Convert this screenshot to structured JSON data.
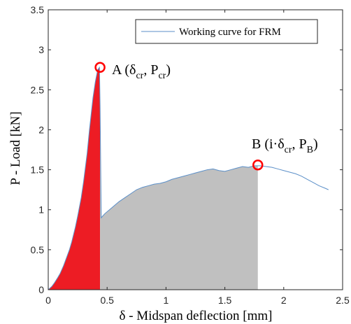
{
  "chart_data": {
    "type": "line",
    "xlabel": "δ - Midspan deflection [mm]",
    "ylabel": "P - Load [kN]",
    "xlim": [
      0,
      2.5
    ],
    "ylim": [
      0,
      3.5
    ],
    "xticks": [
      "0",
      "0.5",
      "1",
      "1.5",
      "2",
      "2.5"
    ],
    "yticks": [
      "0",
      "0.5",
      "1",
      "1.5",
      "2",
      "2.5",
      "3",
      "3.5"
    ],
    "grid": false,
    "legend": {
      "position": "top-right",
      "entries": [
        "Working curve for FRM"
      ]
    },
    "series": [
      {
        "name": "Working curve for FRM",
        "color": "#5b8fc8",
        "x": [
          0,
          0.03,
          0.05,
          0.08,
          0.1,
          0.13,
          0.15,
          0.18,
          0.2,
          0.23,
          0.25,
          0.28,
          0.3,
          0.33,
          0.35,
          0.38,
          0.4,
          0.42,
          0.435,
          0.44,
          0.45,
          0.48,
          0.52,
          0.56,
          0.6,
          0.65,
          0.7,
          0.75,
          0.8,
          0.85,
          0.9,
          0.95,
          1.0,
          1.05,
          1.1,
          1.15,
          1.2,
          1.25,
          1.3,
          1.35,
          1.4,
          1.45,
          1.5,
          1.55,
          1.6,
          1.65,
          1.7,
          1.75,
          1.78,
          1.8,
          1.85,
          1.9,
          1.95,
          2.0,
          2.05,
          2.1,
          2.15,
          2.2,
          2.25,
          2.3,
          2.35,
          2.38
        ],
        "y": [
          0,
          0.04,
          0.08,
          0.15,
          0.2,
          0.3,
          0.38,
          0.5,
          0.6,
          0.78,
          0.92,
          1.15,
          1.35,
          1.7,
          2.0,
          2.4,
          2.6,
          2.75,
          2.78,
          2.3,
          0.9,
          0.95,
          1.0,
          1.05,
          1.1,
          1.15,
          1.2,
          1.25,
          1.28,
          1.3,
          1.32,
          1.33,
          1.35,
          1.38,
          1.4,
          1.42,
          1.44,
          1.46,
          1.48,
          1.5,
          1.51,
          1.49,
          1.48,
          1.5,
          1.52,
          1.54,
          1.53,
          1.55,
          1.55,
          1.55,
          1.54,
          1.53,
          1.51,
          1.49,
          1.47,
          1.45,
          1.42,
          1.38,
          1.34,
          1.3,
          1.27,
          1.25
        ]
      }
    ],
    "regions": [
      {
        "color": "#ed1c24",
        "x_start": 0,
        "x_end": 0.44
      },
      {
        "color": "#c0c0c0",
        "x_start": 0.44,
        "x_end": 1.78
      }
    ],
    "markers": [
      {
        "x": 0.44,
        "y": 2.78,
        "color": "#ff0000"
      },
      {
        "x": 1.78,
        "y": 1.56,
        "color": "#ff0000"
      }
    ],
    "annotations": {
      "A": {
        "prefix": "A (δ",
        "sub1": "cr",
        "mid": ", P",
        "sub2": "cr",
        "suffix": ")"
      },
      "B": {
        "prefix": "B (i·δ",
        "sub1": "cr",
        "mid": ", P",
        "sub2": "B",
        "suffix": ")"
      }
    }
  }
}
